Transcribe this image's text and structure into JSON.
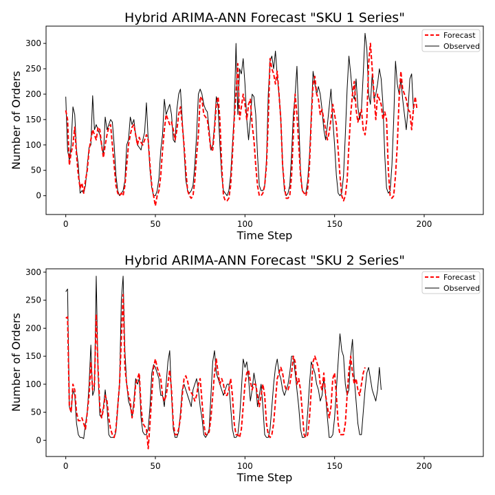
{
  "chart_data": [
    {
      "type": "line",
      "title": "Hybrid ARIMA-ANN Forecast \"SKU 1 Series\"",
      "xlabel": "Time Step",
      "ylabel": "Number of Orders",
      "xlim": [
        -11,
        233
      ],
      "ylim": [
        -37,
        334
      ],
      "xticks": [
        0,
        50,
        100,
        150,
        200
      ],
      "yticks": [
        0,
        50,
        100,
        150,
        200,
        250,
        300
      ],
      "legend_position": "top-right",
      "series": [
        {
          "name": "Forecast",
          "color": "#ff0000",
          "style": "dashed",
          "values": [
            168,
            150,
            60,
            85,
            100,
            135,
            80,
            40,
            15,
            25,
            5,
            30,
            50,
            90,
            110,
            130,
            120,
            110,
            135,
            130,
            100,
            75,
            100,
            120,
            135,
            140,
            100,
            60,
            20,
            5,
            0,
            5,
            0,
            20,
            60,
            100,
            120,
            135,
            140,
            120,
            100,
            115,
            105,
            100,
            110,
            120,
            110,
            60,
            20,
            0,
            -20,
            0,
            10,
            40,
            90,
            130,
            160,
            150,
            140,
            145,
            130,
            110,
            130,
            160,
            175,
            140,
            100,
            50,
            10,
            0,
            -5,
            0,
            30,
            80,
            120,
            195,
            190,
            160,
            155,
            150,
            120,
            90,
            90,
            130,
            180,
            195,
            150,
            60,
            0,
            -10,
            -10,
            -5,
            20,
            80,
            150,
            200,
            260,
            150,
            175,
            200,
            180,
            150,
            180,
            190,
            140,
            110,
            60,
            20,
            0,
            0,
            5,
            20,
            60,
            150,
            270,
            250,
            240,
            220,
            245,
            200,
            150,
            60,
            20,
            -5,
            -5,
            0,
            40,
            120,
            200,
            160,
            100,
            40,
            10,
            5,
            0,
            15,
            60,
            150,
            220,
            235,
            200,
            190,
            160,
            170,
            150,
            130,
            110,
            125,
            150,
            180,
            160,
            140,
            90,
            40,
            0,
            -10,
            0,
            30,
            100,
            160,
            200,
            225,
            170,
            145,
            160,
            170,
            130,
            120,
            150,
            260,
            300,
            250,
            200,
            150,
            200,
            190,
            180,
            150,
            165,
            150,
            50,
            0,
            -5,
            0,
            40,
            100,
            190,
            245,
            210,
            200,
            190,
            170,
            165,
            130,
            170,
            195,
            170
          ],
          "x_start": 0
        },
        {
          "name": "Observed",
          "color": "#000000",
          "style": "solid",
          "values": [
            195,
            90,
            70,
            100,
            175,
            160,
            90,
            60,
            5,
            10,
            5,
            20,
            60,
            95,
            100,
            197,
            130,
            140,
            130,
            120,
            100,
            80,
            155,
            130,
            140,
            150,
            145,
            100,
            40,
            10,
            0,
            5,
            10,
            30,
            100,
            110,
            155,
            140,
            150,
            120,
            100,
            95,
            90,
            110,
            125,
            183,
            110,
            50,
            15,
            0,
            0,
            10,
            35,
            90,
            120,
            190,
            160,
            170,
            180,
            160,
            110,
            105,
            170,
            200,
            210,
            150,
            90,
            30,
            10,
            5,
            10,
            20,
            60,
            120,
            200,
            210,
            200,
            180,
            170,
            165,
            130,
            90,
            100,
            140,
            195,
            175,
            100,
            40,
            10,
            5,
            0,
            10,
            40,
            100,
            160,
            300,
            160,
            250,
            240,
            270,
            220,
            150,
            110,
            150,
            200,
            195,
            160,
            80,
            20,
            10,
            10,
            20,
            70,
            200,
            265,
            275,
            250,
            285,
            235,
            200,
            150,
            60,
            10,
            0,
            5,
            20,
            80,
            160,
            200,
            255,
            150,
            50,
            10,
            5,
            5,
            30,
            80,
            160,
            245,
            220,
            200,
            215,
            200,
            170,
            130,
            110,
            140,
            175,
            210,
            150,
            100,
            40,
            5,
            0,
            5,
            40,
            120,
            210,
            275,
            240,
            200,
            190,
            230,
            175,
            150,
            170,
            240,
            320,
            290,
            200,
            180,
            240,
            190,
            200,
            220,
            250,
            230,
            180,
            80,
            15,
            5,
            10,
            60,
            150,
            265,
            220,
            200,
            230,
            190,
            160,
            130,
            170,
            230,
            240,
            170
          ],
          "x_start": 0
        }
      ]
    },
    {
      "type": "line",
      "title": "Hybrid ARIMA-ANN Forecast \"SKU 2 Series\"",
      "xlabel": "Time Step",
      "ylabel": "Number of Orders",
      "xlim": [
        -11,
        233
      ],
      "ylim": [
        -29,
        306
      ],
      "xticks": [
        0,
        50,
        100,
        150,
        200
      ],
      "yticks": [
        0,
        50,
        100,
        150,
        200,
        250,
        300
      ],
      "legend_position": "top-right",
      "series": [
        {
          "name": "Forecast",
          "color": "#ff0000",
          "style": "dashed",
          "values": [
            218,
            220,
            60,
            50,
            100,
            90,
            50,
            35,
            35,
            40,
            30,
            20,
            50,
            80,
            140,
            90,
            100,
            225,
            130,
            60,
            40,
            55,
            80,
            70,
            40,
            20,
            10,
            5,
            20,
            60,
            100,
            180,
            260,
            130,
            100,
            80,
            70,
            40,
            60,
            100,
            110,
            120,
            60,
            30,
            25,
            20,
            -15,
            30,
            80,
            130,
            145,
            130,
            120,
            110,
            80,
            70,
            80,
            100,
            125,
            90,
            30,
            10,
            10,
            20,
            40,
            80,
            110,
            115,
            105,
            90,
            85,
            80,
            70,
            80,
            100,
            110,
            70,
            30,
            10,
            10,
            15,
            40,
            80,
            120,
            145,
            120,
            100,
            110,
            100,
            80,
            80,
            90,
            110,
            80,
            30,
            10,
            10,
            5,
            20,
            60,
            100,
            120,
            125,
            105,
            90,
            100,
            100,
            80,
            60,
            80,
            100,
            80,
            30,
            10,
            5,
            10,
            30,
            70,
            110,
            120,
            130,
            120,
            100,
            90,
            90,
            100,
            120,
            150,
            140,
            100,
            110,
            90,
            50,
            10,
            5,
            10,
            40,
            90,
            140,
            150,
            140,
            130,
            100,
            90,
            120,
            80,
            60,
            40,
            60,
            110,
            120,
            80,
            30,
            10,
            10,
            10,
            30,
            80,
            125,
            150,
            120,
            100,
            110,
            90,
            80,
            100,
            120,
            130
          ],
          "x_start": 0
        },
        {
          "name": "Observed",
          "color": "#000000",
          "style": "solid",
          "values": [
            265,
            270,
            60,
            50,
            90,
            80,
            30,
            10,
            5,
            5,
            3,
            30,
            50,
            100,
            170,
            80,
            90,
            293,
            120,
            45,
            40,
            60,
            90,
            60,
            10,
            5,
            5,
            5,
            15,
            60,
            100,
            250,
            293,
            160,
            100,
            70,
            60,
            40,
            70,
            110,
            100,
            110,
            40,
            15,
            10,
            10,
            20,
            60,
            120,
            135,
            130,
            120,
            110,
            80,
            80,
            60,
            100,
            140,
            160,
            80,
            20,
            5,
            5,
            15,
            50,
            90,
            100,
            90,
            80,
            70,
            60,
            90,
            100,
            110,
            90,
            60,
            40,
            10,
            5,
            10,
            20,
            80,
            140,
            160,
            120,
            110,
            100,
            90,
            80,
            90,
            100,
            100,
            60,
            20,
            5,
            5,
            10,
            40,
            90,
            145,
            130,
            140,
            110,
            70,
            90,
            120,
            100,
            60,
            80,
            100,
            60,
            10,
            5,
            5,
            20,
            60,
            100,
            130,
            145,
            120,
            110,
            90,
            80,
            90,
            100,
            120,
            150,
            150,
            120,
            90,
            60,
            20,
            5,
            5,
            10,
            50,
            100,
            140,
            130,
            120,
            100,
            90,
            70,
            80,
            110,
            80,
            40,
            5,
            5,
            10,
            40,
            90,
            140,
            190,
            160,
            150,
            100,
            80,
            90,
            150,
            180,
            110,
            70,
            30,
            10,
            10,
            50,
            90,
            120,
            130,
            110,
            90,
            80,
            70,
            90,
            130,
            90
          ],
          "x_start": 0
        }
      ]
    }
  ]
}
